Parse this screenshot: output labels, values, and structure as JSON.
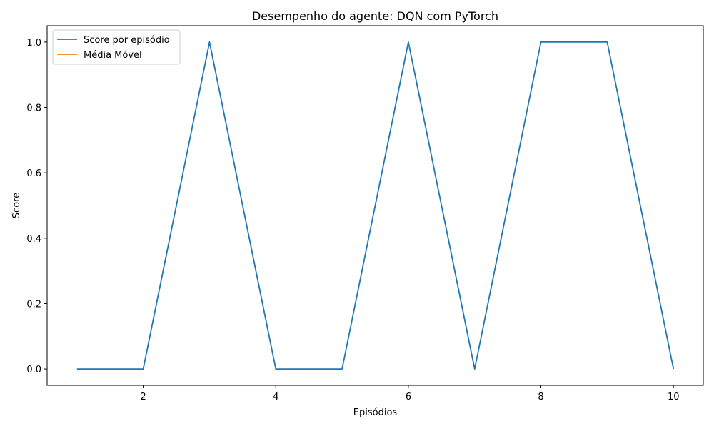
{
  "chart_data": {
    "type": "line",
    "title": "Desempenho do agente: DQN com PyTorch",
    "xlabel": "Episódios",
    "ylabel": "Score",
    "xlim": [
      0.55,
      10.45
    ],
    "ylim": [
      -0.05,
      1.05
    ],
    "xticks": [
      2,
      4,
      6,
      8,
      10
    ],
    "xtick_labels": [
      "2",
      "4",
      "6",
      "8",
      "10"
    ],
    "yticks": [
      0.0,
      0.2,
      0.4,
      0.6,
      0.8,
      1.0
    ],
    "ytick_labels": [
      "0.0",
      "0.2",
      "0.4",
      "0.6",
      "0.8",
      "1.0"
    ],
    "grid": false,
    "legend_position": "top-left",
    "series": [
      {
        "name": "Score por episódio",
        "color": "#1f77b4",
        "x": [
          1,
          2,
          3,
          4,
          5,
          6,
          7,
          8,
          9,
          10
        ],
        "y": [
          0,
          0,
          1,
          0,
          0,
          1,
          0,
          1,
          1,
          0
        ]
      },
      {
        "name": "Média Móvel",
        "color": "#ff7f0e",
        "x": [],
        "y": []
      }
    ]
  }
}
